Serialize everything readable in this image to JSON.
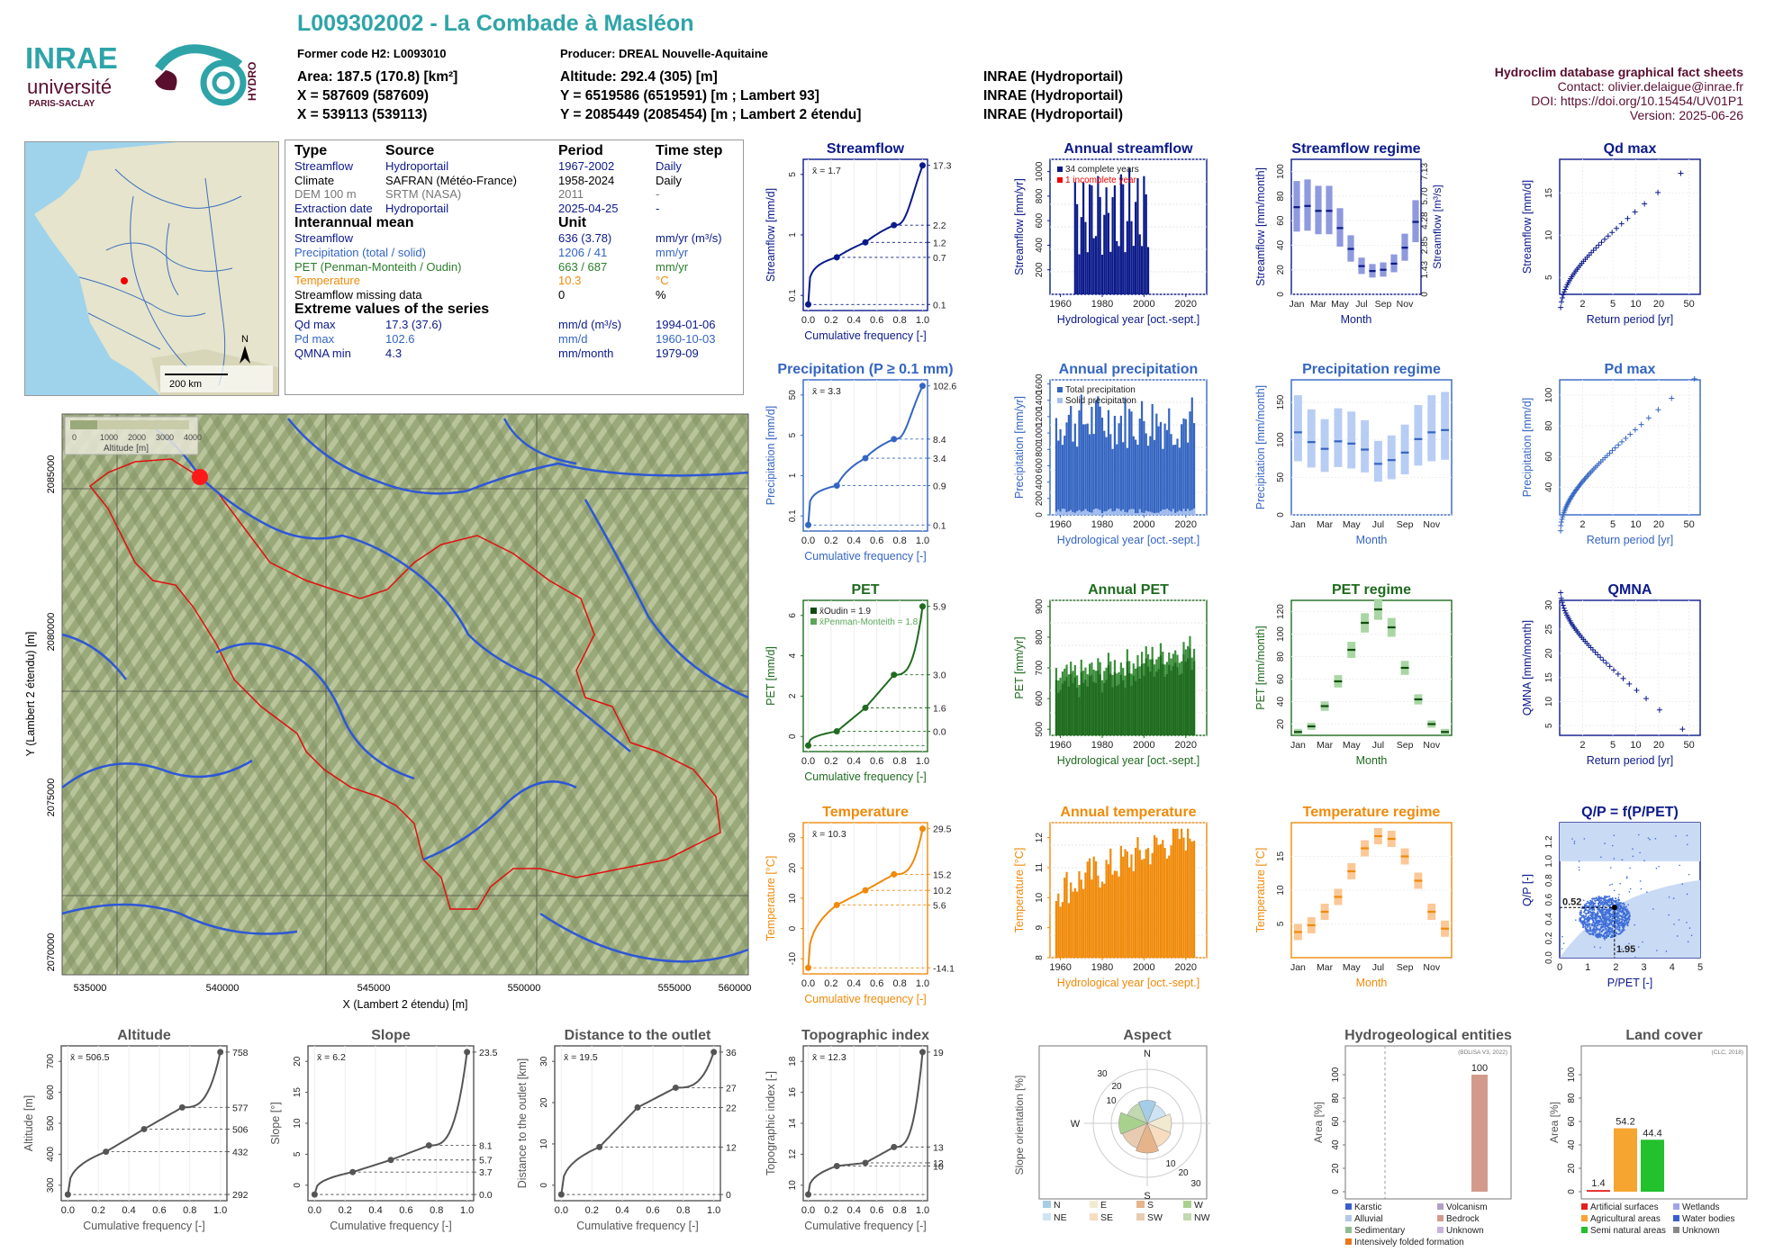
{
  "header": {
    "title": "L009302002 - La Combade à Masléon",
    "former_code": "Former code H2: L0093010",
    "producer": "Producer: DREAL Nouvelle-Aquitaine",
    "area": "Area: 187.5 (170.8) [km²]",
    "altitude": "Altitude: 292.4 (305) [m]",
    "x1": "X = 587609 (587609)",
    "y1": "Y = 6519586 (6519591) [m ; Lambert 93]",
    "x2": "X = 539113 (539113)",
    "y2": "Y = 2085449 (2085454) [m ; Lambert 2 étendu]",
    "src1": "INRAE (Hydroportail)",
    "src2": "INRAE (Hydroportail)",
    "src3": "INRAE (Hydroportail)",
    "db_title": "Hydroclim database graphical fact sheets",
    "contact": "Contact: olivier.delaigue@inrae.fr",
    "doi": "DOI: https://doi.org/10.15454/UV01P1",
    "version": "Version: 2025-06-26",
    "logo_inrae": "INRAE",
    "logo_univ": "université",
    "logo_ps": "PARIS-SACLAY",
    "logo_hydro": "HYDRO"
  },
  "colors": {
    "streamflow": "#0b1a8a",
    "precip": "#3465c2",
    "pet": "#1f6b1f",
    "temp": "#f08a0a",
    "gray": "#555555",
    "teal": "#2fa4a8"
  },
  "table": {
    "h_type": "Type",
    "h_source": "Source",
    "h_period": "Period",
    "h_timestep": "Time step",
    "rows": [
      {
        "type": "Streamflow",
        "source": "Hydroportail",
        "period": "1967-2002",
        "step": "Daily",
        "cls": "dblue"
      },
      {
        "type": "Climate",
        "source": "SAFRAN (Météo-France)",
        "period": "1958-2024",
        "step": "Daily",
        "cls": ""
      },
      {
        "type": "DEM 100 m",
        "source": "SRTM (NASA)",
        "period": "2011",
        "step": "-",
        "cls": "gray"
      },
      {
        "type": "Extraction date",
        "source": "Hydroportail",
        "period": "2025-04-25",
        "step": "-",
        "cls": "dblue"
      }
    ],
    "h_mean": "Interannual mean",
    "h_unit": "Unit",
    "means": [
      {
        "name": "Streamflow",
        "value": "636 (3.78)",
        "unit": "mm/yr (m³/s)",
        "cls": "dblue"
      },
      {
        "name": "Precipitation (total / solid)",
        "value": "1206 / 41",
        "unit": "mm/yr",
        "cls": "blue"
      },
      {
        "name": "PET (Penman-Monteith / Oudin)",
        "value": "663 / 687",
        "unit": "mm/yr",
        "cls": "green"
      },
      {
        "name": "Temperature",
        "value": "10.3",
        "unit": "°C",
        "cls": "orange"
      },
      {
        "name": "Streamflow missing data",
        "value": "0",
        "unit": "%",
        "cls": ""
      }
    ],
    "h_extreme": "Extreme values of the series",
    "extremes": [
      {
        "name": "Qd max",
        "value": "17.3 (37.6)",
        "unit": "mm/d (m³/s)",
        "date": "1994-01-06",
        "cls": "dblue"
      },
      {
        "name": "Pd max",
        "value": "102.6",
        "unit": "mm/d",
        "date": "1960-10-03",
        "cls": "blue"
      },
      {
        "name": "QMNA min",
        "value": "4.3",
        "unit": "mm/month",
        "date": "1979-09",
        "cls": "dblue"
      }
    ]
  },
  "france_map": {
    "scale": "200 km",
    "north": "N"
  },
  "basin_map": {
    "xlabel": "X (Lambert 2 étendu) [m]",
    "ylabel": "Y (Lambert 2 étendu) [m]",
    "xticks": [
      "535000",
      "540000",
      "545000",
      "550000",
      "555000",
      "560000"
    ],
    "yticks": [
      "2085000",
      "2080000",
      "2075000",
      "2070000"
    ],
    "legend_title": "Altitude [m]",
    "legend_ticks": [
      "0",
      "1000",
      "2000",
      "3000",
      "4000"
    ]
  },
  "chart_data": [
    {
      "id": "streamflow_cdf",
      "type": "line",
      "title": "Streamflow",
      "xlabel": "Cumulative frequency [-]",
      "ylabel": "Streamflow [mm/d]",
      "mean_label": "x̄ = 1.7",
      "right_ticks": [
        "17.3",
        "2.2",
        "1.2",
        "0.7",
        "0.1"
      ],
      "yticks": [
        "0.1",
        "1",
        "5"
      ],
      "x": [
        0,
        0.25,
        0.5,
        0.75,
        1
      ],
      "y": [
        0.1,
        0.7,
        1.2,
        2.2,
        17.3
      ]
    },
    {
      "id": "annual_streamflow",
      "type": "bar",
      "title": "Annual streamflow",
      "xlabel": "Hydrological year [oct.-sept.]",
      "ylabel": "Streamflow [mm/yr]",
      "legend": [
        "34 complete years",
        "1 incomplete year"
      ],
      "xticks": [
        "1960",
        "1980",
        "2000",
        "2020"
      ],
      "yticks": [
        "200",
        "400",
        "600",
        "800",
        "1000"
      ],
      "ylim": [
        0,
        1100
      ]
    },
    {
      "id": "streamflow_regime",
      "type": "bar",
      "title": "Streamflow regime",
      "xlabel": "Month",
      "ylabel": "Streamflow [mm/month]",
      "ylabel2": "Streamflow [m³/s]",
      "yticks": [
        "0",
        "20",
        "40",
        "60",
        "80",
        "100"
      ],
      "yticks2": [
        "0",
        "1.43",
        "2.85",
        "4.28",
        "5.70",
        "7.13"
      ],
      "categories": [
        "Jan",
        "Feb",
        "Mar",
        "Apr",
        "May",
        "Jun",
        "Jul",
        "Aug",
        "Sep",
        "Oct",
        "Nov",
        "Dec"
      ],
      "xticks": [
        "Jan",
        "Mar",
        "May",
        "Jul",
        "Sep",
        "Nov"
      ],
      "values": [
        71,
        72,
        68,
        68,
        54,
        37,
        23,
        19,
        20,
        25,
        38,
        59
      ]
    },
    {
      "id": "qd_max",
      "type": "scatter",
      "title": "Qd max",
      "xlabel": "Return period [yr]",
      "ylabel": "Streamflow [mm/d]",
      "xticks": [
        "2",
        "5",
        "10",
        "20",
        "50"
      ],
      "yticks": [
        "5",
        "10",
        "15"
      ]
    },
    {
      "id": "precip_cdf",
      "type": "line",
      "title": "Precipitation (P ≥ 0.1 mm)",
      "xlabel": "Cumulative frequency [-]",
      "ylabel": "Precipitation [mm/d]",
      "mean_label": "x̄ = 3.3",
      "right_ticks": [
        "102.6",
        "8.4",
        "3.4",
        "0.9",
        "0.1"
      ],
      "yticks": [
        "0.1",
        "1",
        "5",
        "50"
      ],
      "x": [
        0,
        0.25,
        0.5,
        0.75,
        1
      ],
      "y": [
        0.1,
        0.9,
        3.4,
        8.4,
        102.6
      ]
    },
    {
      "id": "annual_precip",
      "type": "bar",
      "title": "Annual precipitation",
      "xlabel": "Hydrological year [oct.-sept.]",
      "ylabel": "Precipitation [mm/yr]",
      "legend": [
        "Total precipitation",
        "Solid precipitation"
      ],
      "xticks": [
        "1960",
        "1980",
        "2000",
        "2020"
      ],
      "yticks": [
        "0",
        "200",
        "400",
        "600",
        "800",
        "1000",
        "1200",
        "1400",
        "1600"
      ],
      "ylim": [
        0,
        1650
      ]
    },
    {
      "id": "precip_regime",
      "type": "bar",
      "title": "Precipitation regime",
      "xlabel": "Month",
      "ylabel": "Precipitation [mm/month]",
      "yticks": [
        "0",
        "50",
        "100",
        "150"
      ],
      "categories": [
        "Jan",
        "Feb",
        "Mar",
        "Apr",
        "May",
        "Jun",
        "Jul",
        "Aug",
        "Sep",
        "Oct",
        "Nov",
        "Dec"
      ],
      "xticks": [
        "Jan",
        "Mar",
        "May",
        "Jul",
        "Sep",
        "Nov"
      ],
      "values": [
        110,
        97,
        88,
        98,
        95,
        87,
        68,
        73,
        83,
        101,
        110,
        113
      ]
    },
    {
      "id": "pd_max",
      "type": "scatter",
      "title": "Pd max",
      "xlabel": "Return period [yr]",
      "ylabel": "Precipitation [mm/d]",
      "xticks": [
        "2",
        "5",
        "10",
        "20",
        "50"
      ],
      "yticks": [
        "40",
        "60",
        "80",
        "100"
      ]
    },
    {
      "id": "pet_cdf",
      "type": "line",
      "title": "PET",
      "xlabel": "Cumulative frequency [-]",
      "ylabel": "PET [mm/d]",
      "mean_label_1": "x̄Oudin = 1.9",
      "mean_label_2": "x̄Penman-Monteith = 1.8",
      "right_ticks": [
        "5.9",
        "3.0",
        "1.6",
        "0.0"
      ],
      "yticks": [
        "0",
        "2",
        "4",
        "6"
      ],
      "x": [
        0,
        0.25,
        0.5,
        0.75,
        1
      ],
      "y": [
        0.0,
        0.6,
        1.6,
        3.0,
        5.9
      ]
    },
    {
      "id": "annual_pet",
      "type": "bar",
      "title": "Annual PET",
      "xlabel": "Hydrological year [oct.-sept.]",
      "ylabel": "PET [mm/yr]",
      "xticks": [
        "1960",
        "1980",
        "2000",
        "2020"
      ],
      "yticks": [
        "500",
        "600",
        "700",
        "800",
        "900"
      ],
      "ylim": [
        480,
        920
      ]
    },
    {
      "id": "pet_regime",
      "type": "bar",
      "title": "PET regime",
      "xlabel": "Month",
      "ylabel": "PET [mm/month]",
      "yticks": [
        "20",
        "40",
        "60",
        "80",
        "100",
        "120"
      ],
      "categories": [
        "Jan",
        "Feb",
        "Mar",
        "Apr",
        "May",
        "Jun",
        "Jul",
        "Aug",
        "Sep",
        "Oct",
        "Nov",
        "Dec"
      ],
      "xticks": [
        "Jan",
        "Mar",
        "May",
        "Jul",
        "Sep",
        "Nov"
      ],
      "values": [
        13,
        18,
        36,
        58,
        86,
        110,
        122,
        106,
        70,
        42,
        20,
        13
      ]
    },
    {
      "id": "qmna",
      "type": "scatter",
      "title": "QMNA",
      "xlabel": "Return period [yr]",
      "ylabel": "QMNA [mm/month]",
      "xticks": [
        "2",
        "5",
        "10",
        "20",
        "50"
      ],
      "yticks": [
        "5",
        "10",
        "15",
        "20",
        "25",
        "30"
      ]
    },
    {
      "id": "temp_cdf",
      "type": "line",
      "title": "Temperature",
      "xlabel": "Cumulative frequency [-]",
      "ylabel": "Temperature [°C]",
      "mean_label": "x̄ = 10.3",
      "right_ticks": [
        "29.5",
        "15.2",
        "10.2",
        "5.6",
        "-14.1"
      ],
      "yticks": [
        "-10",
        "0",
        "10",
        "20",
        "30"
      ],
      "x": [
        0,
        0.25,
        0.5,
        0.75,
        1
      ],
      "y": [
        -14.1,
        5.6,
        10.2,
        15.2,
        29.5
      ]
    },
    {
      "id": "annual_temp",
      "type": "bar",
      "title": "Annual temperature",
      "xlabel": "Hydrological year [oct.-sept.]",
      "ylabel": "Temperature [°C]",
      "xticks": [
        "1960",
        "1980",
        "2000",
        "2020"
      ],
      "yticks": [
        "8",
        "9",
        "10",
        "11",
        "12"
      ],
      "ylim": [
        8,
        12.5
      ]
    },
    {
      "id": "temp_regime",
      "type": "bar",
      "title": "Temperature regime",
      "xlabel": "Month",
      "ylabel": "Temperature [°C]",
      "yticks": [
        "5",
        "10",
        "15"
      ],
      "categories": [
        "Jan",
        "Feb",
        "Mar",
        "Apr",
        "May",
        "Jun",
        "Jul",
        "Aug",
        "Sep",
        "Oct",
        "Nov",
        "Dec"
      ],
      "xticks": [
        "Jan",
        "Mar",
        "May",
        "Jul",
        "Sep",
        "Nov"
      ],
      "values": [
        3.8,
        4.8,
        6.8,
        9.0,
        12.8,
        16.2,
        18.0,
        17.6,
        15.0,
        11.4,
        6.8,
        4.3
      ]
    },
    {
      "id": "qp_ppet",
      "type": "scatter",
      "title": "Q/P = f(P/PET)",
      "xlabel": "P/PET [-]",
      "ylabel": "Q/P [-]",
      "xticks": [
        "0",
        "1",
        "2",
        "3",
        "4",
        "5"
      ],
      "yticks": [
        "0.0",
        "0.2",
        "0.4",
        "0.6",
        "0.8",
        "1.0",
        "1.2"
      ],
      "annot_y": "0.52",
      "annot_x": "1.95"
    },
    {
      "id": "altitude_cdf",
      "type": "line",
      "title": "Altitude",
      "xlabel": "Cumulative frequency [-]",
      "ylabel": "Altitude [m]",
      "mean_label": "x̄ = 506.5",
      "right_ticks": [
        "758",
        "577",
        "506",
        "432",
        "292"
      ],
      "yticks": [
        "300",
        "400",
        "500",
        "600",
        "700"
      ],
      "x": [
        0,
        0.25,
        0.5,
        0.75,
        1
      ],
      "y": [
        292,
        432,
        506,
        577,
        758
      ]
    },
    {
      "id": "slope_cdf",
      "type": "line",
      "title": "Slope",
      "xlabel": "Cumulative frequency [-]",
      "ylabel": "Slope [°]",
      "mean_label": "x̄ = 6.2",
      "right_ticks": [
        "23.5",
        "8.1",
        "5.7",
        "3.7",
        "0.0"
      ],
      "yticks": [
        "0",
        "5",
        "10",
        "15",
        "20"
      ],
      "x": [
        0,
        0.25,
        0.5,
        0.75,
        1
      ],
      "y": [
        0,
        3.7,
        5.7,
        8.1,
        23.5
      ]
    },
    {
      "id": "distance_cdf",
      "type": "line",
      "title": "Distance to the outlet",
      "xlabel": "Cumulative frequency [-]",
      "ylabel": "Distance to the outlet [km]",
      "mean_label": "x̄ = 19.5",
      "right_ticks": [
        "36",
        "27",
        "22",
        "12",
        "0"
      ],
      "yticks": [
        "0",
        "10",
        "20",
        "30"
      ],
      "x": [
        0,
        0.25,
        0.5,
        0.75,
        1
      ],
      "y": [
        0,
        12,
        22,
        27,
        36
      ]
    },
    {
      "id": "topo_cdf",
      "type": "line",
      "title": "Topographic index",
      "xlabel": "Cumulative frequency [-]",
      "ylabel": "Topographic index [-]",
      "mean_label": "x̄ = 12.3",
      "right_ticks": [
        "19",
        "13",
        "12",
        "10"
      ],
      "yticks": [
        "10",
        "12",
        "14",
        "16",
        "18"
      ],
      "x": [
        0,
        0.25,
        0.5,
        0.75,
        1
      ],
      "y": [
        10,
        11.8,
        12,
        13,
        19
      ]
    },
    {
      "id": "aspect",
      "type": "pie",
      "title": "Aspect",
      "ylabel": "Slope orientation [%]",
      "directions": [
        "N",
        "E",
        "S",
        "W"
      ],
      "ring_labels": [
        "10",
        "20",
        "30"
      ],
      "legend": [
        "N",
        "E",
        "S",
        "W",
        "NE",
        "SE",
        "SW",
        "NW"
      ],
      "legend_colors": [
        "#a6cde8",
        "#f2ead0",
        "#e6b48a",
        "#a9d18e",
        "#cfe4f3",
        "#f7dcc0",
        "#e8cbb0",
        "#c2d8b0"
      ]
    },
    {
      "id": "hydrogeology",
      "type": "bar",
      "title": "Hydrogeological entities",
      "ylabel": "Area [%]",
      "source": "(BDLISA V3, 2022)",
      "yticks": [
        "0",
        "20",
        "40",
        "60",
        "80",
        "100"
      ],
      "values": [
        100
      ],
      "value_label": "100",
      "legend": [
        "Karstic",
        "Alluvial",
        "Sedimentary",
        "Intensively folded formation",
        "Volcanism",
        "Bedrock",
        "Unknown"
      ],
      "legend_colors": [
        "#3a5fcd",
        "#b4c8e8",
        "#8fbc8f",
        "#e8781a",
        "#b0a0c8",
        "#d39a8c",
        "#c8b4d8"
      ]
    },
    {
      "id": "land_cover",
      "type": "bar",
      "title": "Land cover",
      "ylabel": "Area [%]",
      "source": "(CLC, 2018)",
      "yticks": [
        "0",
        "20",
        "40",
        "60",
        "80",
        "100"
      ],
      "values": [
        1.4,
        54.2,
        44.4
      ],
      "value_labels": [
        "1.4",
        "54.2",
        "44.4"
      ],
      "legend": [
        "Artificial surfaces",
        "Agricultural areas",
        "Semi natural areas",
        "Wetlands",
        "Water bodies",
        "Unknown"
      ],
      "legend_colors": [
        "#e4201c",
        "#f7a531",
        "#22c12d",
        "#9fa6e8",
        "#3a5fcd",
        "#888888"
      ]
    }
  ]
}
